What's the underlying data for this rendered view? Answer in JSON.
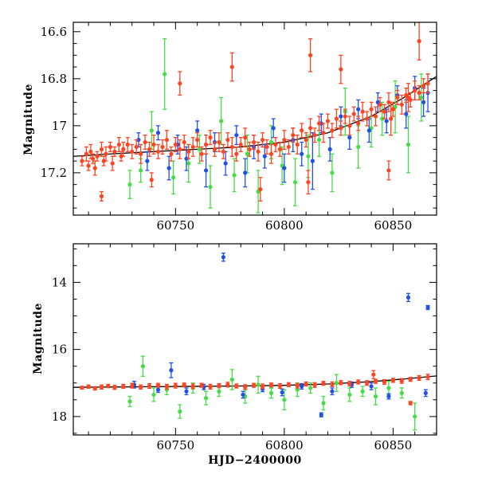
{
  "colors": {
    "series_a": "#2050e8",
    "series_b": "#44dd44",
    "series_c": "#ff4422",
    "fit": "#000000",
    "frame": "#000000"
  },
  "chart_data": [
    {
      "type": "scatter",
      "title": "",
      "xlabel": "",
      "ylabel": "Magnitude",
      "xlim": [
        60703,
        60870
      ],
      "ylim": [
        17.38,
        16.56
      ],
      "y_inverted": true,
      "x_ticks": [
        60750,
        60800,
        60850
      ],
      "x_tick_labels": [
        "60750",
        "60800",
        "60850"
      ],
      "y_ticks": [
        16.6,
        16.8,
        17,
        17.2
      ],
      "y_tick_labels": [
        "16.6",
        "16.8",
        "17",
        "17.2"
      ],
      "grid": false,
      "legend": "none",
      "fit_line": {
        "x": [
          60703,
          60720,
          60740,
          60760,
          60780,
          60800,
          60820,
          60840,
          60855,
          60870
        ],
        "y": [
          17.13,
          17.12,
          17.11,
          17.1,
          17.09,
          17.07,
          17.03,
          16.96,
          16.88,
          16.79
        ]
      },
      "series": [
        {
          "color_key": "series_c",
          "x": [
            60707,
            60709,
            60710,
            60711,
            60712,
            60713,
            60714,
            60716,
            60717,
            60718,
            60720,
            60721,
            60722,
            60724,
            60725,
            60726,
            60728,
            60730,
            60732,
            60734,
            60736,
            60738,
            60740,
            60742,
            60744,
            60746,
            60748,
            60750,
            60752,
            60754,
            60756,
            60758,
            60760,
            60762,
            60764,
            60766,
            60768,
            60770,
            60772,
            60774,
            60776,
            60778,
            60780,
            60782,
            60784,
            60786,
            60788,
            60790,
            60792,
            60794,
            60796,
            60798,
            60800,
            60802,
            60804,
            60806,
            60808,
            60810,
            60812,
            60814,
            60816,
            60818,
            60820,
            60822,
            60824,
            60826,
            60828,
            60830,
            60832,
            60834,
            60836,
            60838,
            60840,
            60842,
            60844,
            60846,
            60848,
            60850,
            60852,
            60854,
            60856,
            60858,
            60860,
            60862,
            60864,
            60866,
            60716,
            60739,
            60752,
            60776,
            60789,
            60812,
            60826,
            60849,
            60857,
            60862,
            60811,
            60848
          ],
          "y": [
            17.15,
            17.12,
            17.17,
            17.11,
            17.14,
            17.18,
            17.13,
            17.1,
            17.15,
            17.12,
            17.09,
            17.16,
            17.11,
            17.08,
            17.13,
            17.1,
            17.08,
            17.11,
            17.09,
            17.12,
            17.07,
            17.1,
            17.08,
            17.11,
            17.09,
            17.06,
            17.12,
            17.08,
            17.1,
            17.07,
            17.11,
            17.09,
            17.06,
            17.12,
            17.08,
            17.05,
            17.1,
            17.07,
            17.11,
            17.06,
            17.09,
            17.12,
            17.08,
            17.05,
            17.1,
            17.07,
            17.11,
            17.06,
            17.09,
            17.12,
            17.08,
            17.1,
            17.06,
            17.09,
            17.04,
            17.08,
            17.02,
            17.06,
            17.01,
            17.04,
            16.99,
            17.03,
            16.98,
            17.02,
            16.97,
            17.01,
            16.96,
            17.0,
            16.95,
            16.99,
            16.94,
            16.97,
            16.93,
            16.96,
            16.91,
            16.94,
            16.9,
            16.93,
            16.88,
            16.91,
            16.87,
            16.89,
            16.85,
            16.86,
            16.83,
            16.82,
            17.3,
            17.23,
            16.82,
            16.75,
            17.27,
            16.7,
            16.76,
            16.97,
            16.88,
            16.64,
            17.24,
            17.19
          ],
          "yerr": [
            0.02,
            0.03,
            0.02,
            0.03,
            0.02,
            0.03,
            0.02,
            0.03,
            0.02,
            0.03,
            0.02,
            0.03,
            0.02,
            0.03,
            0.02,
            0.03,
            0.03,
            0.03,
            0.03,
            0.04,
            0.03,
            0.03,
            0.04,
            0.03,
            0.03,
            0.04,
            0.03,
            0.03,
            0.04,
            0.03,
            0.03,
            0.04,
            0.03,
            0.03,
            0.04,
            0.03,
            0.03,
            0.04,
            0.03,
            0.03,
            0.04,
            0.03,
            0.03,
            0.04,
            0.03,
            0.03,
            0.04,
            0.03,
            0.03,
            0.04,
            0.03,
            0.03,
            0.04,
            0.03,
            0.03,
            0.04,
            0.03,
            0.03,
            0.04,
            0.03,
            0.03,
            0.04,
            0.03,
            0.03,
            0.04,
            0.03,
            0.03,
            0.04,
            0.03,
            0.03,
            0.04,
            0.03,
            0.03,
            0.04,
            0.03,
            0.03,
            0.04,
            0.03,
            0.03,
            0.04,
            0.03,
            0.03,
            0.04,
            0.03,
            0.03,
            0.04,
            0.02,
            0.03,
            0.05,
            0.06,
            0.05,
            0.07,
            0.06,
            0.07,
            0.06,
            0.08,
            0.05,
            0.04
          ]
        },
        {
          "color_key": "series_a",
          "x": [
            60733,
            60737,
            60742,
            60747,
            60751,
            60755,
            60760,
            60764,
            60768,
            60773,
            60778,
            60782,
            60786,
            60791,
            60795,
            60800,
            60804,
            60808,
            60813,
            60817,
            60821,
            60826,
            60830,
            60834,
            60839,
            60843,
            60847,
            60852,
            60856,
            60860,
            60864,
            60866
          ],
          "y": [
            17.06,
            17.15,
            17.03,
            17.18,
            17.08,
            17.14,
            17.02,
            17.19,
            17.07,
            17.16,
            17.04,
            17.2,
            17.09,
            17.13,
            17.01,
            17.18,
            17.06,
            17.12,
            17.15,
            16.99,
            17.1,
            16.96,
            17.05,
            16.93,
            17.02,
            16.9,
            16.98,
            16.87,
            16.95,
            16.84,
            16.9,
            16.86
          ],
          "yerr": [
            0.03,
            0.04,
            0.03,
            0.05,
            0.04,
            0.05,
            0.04,
            0.07,
            0.04,
            0.05,
            0.04,
            0.06,
            0.05,
            0.05,
            0.04,
            0.06,
            0.05,
            0.05,
            0.12,
            0.04,
            0.05,
            0.04,
            0.05,
            0.04,
            0.05,
            0.04,
            0.05,
            0.04,
            0.06,
            0.05,
            0.06,
            0.08
          ]
        },
        {
          "color_key": "series_b",
          "x": [
            60729,
            60734,
            60739,
            60745,
            60749,
            60756,
            60761,
            60766,
            60771,
            60777,
            60783,
            60788,
            60794,
            60799,
            60805,
            60811,
            60816,
            60822,
            60828,
            60834,
            60840,
            60845,
            60851,
            60857,
            60863
          ],
          "y": [
            17.25,
            17.19,
            17.02,
            16.78,
            17.22,
            17.16,
            17.1,
            17.26,
            16.98,
            17.21,
            17.12,
            17.28,
            17.07,
            17.17,
            17.24,
            17.13,
            17.06,
            17.2,
            16.94,
            17.09,
            17.01,
            16.97,
            16.92,
            17.08,
            16.88
          ],
          "yerr": [
            0.06,
            0.05,
            0.08,
            0.15,
            0.07,
            0.08,
            0.06,
            0.09,
            0.1,
            0.07,
            0.08,
            0.09,
            0.07,
            0.08,
            0.1,
            0.09,
            0.07,
            0.08,
            0.1,
            0.09,
            0.08,
            0.07,
            0.11,
            0.12,
            0.1
          ]
        }
      ]
    },
    {
      "type": "scatter",
      "title": "",
      "xlabel": "HJD−2400000",
      "ylabel": "Magnitude",
      "xlim": [
        60703,
        60870
      ],
      "ylim": [
        18.55,
        12.85
      ],
      "y_inverted": true,
      "x_ticks": [
        60750,
        60800,
        60850
      ],
      "x_tick_labels": [
        "60750",
        "60800",
        "60850"
      ],
      "y_ticks": [
        14,
        16,
        18
      ],
      "y_tick_labels": [
        "14",
        "16",
        "18"
      ],
      "grid": false,
      "legend": "none",
      "fit_line": {
        "x": [
          60703,
          60720,
          60740,
          60760,
          60780,
          60800,
          60820,
          60840,
          60855,
          60870
        ],
        "y": [
          17.13,
          17.12,
          17.11,
          17.1,
          17.09,
          17.07,
          17.03,
          16.96,
          16.88,
          16.79
        ]
      },
      "series": [
        {
          "color_key": "series_c",
          "x": [
            60707,
            60710,
            60713,
            60716,
            60719,
            60722,
            60726,
            60730,
            60734,
            60738,
            60742,
            60746,
            60750,
            60754,
            60758,
            60762,
            60766,
            60770,
            60774,
            60778,
            60782,
            60786,
            60790,
            60794,
            60798,
            60802,
            60806,
            60810,
            60814,
            60818,
            60822,
            60826,
            60830,
            60834,
            60838,
            60842,
            60846,
            60850,
            60854,
            60858,
            60862,
            60866,
            60841,
            60858
          ],
          "y": [
            17.14,
            17.11,
            17.16,
            17.12,
            17.09,
            17.13,
            17.1,
            17.08,
            17.12,
            17.09,
            17.07,
            17.11,
            17.08,
            17.06,
            17.1,
            17.07,
            17.11,
            17.08,
            17.05,
            17.09,
            17.12,
            17.07,
            17.1,
            17.06,
            17.09,
            17.05,
            17.08,
            17.03,
            17.06,
            17.01,
            17.04,
            16.99,
            17.02,
            16.97,
            17.0,
            16.95,
            16.97,
            16.92,
            16.94,
            16.89,
            16.85,
            16.82,
            16.75,
            17.6
          ],
          "yerr": [
            0.04,
            0.05,
            0.05,
            0.06,
            0.05,
            0.06,
            0.06,
            0.07,
            0.06,
            0.07,
            0.06,
            0.07,
            0.07,
            0.06,
            0.07,
            0.06,
            0.07,
            0.06,
            0.07,
            0.06,
            0.07,
            0.06,
            0.07,
            0.06,
            0.07,
            0.06,
            0.07,
            0.06,
            0.07,
            0.06,
            0.07,
            0.06,
            0.07,
            0.06,
            0.07,
            0.06,
            0.07,
            0.06,
            0.07,
            0.06,
            0.07,
            0.08,
            0.12,
            0.05
          ]
        },
        {
          "color_key": "series_a",
          "x": [
            60731,
            60742,
            60748,
            60755,
            60763,
            60772,
            60781,
            60790,
            60799,
            60808,
            60817,
            60822,
            60831,
            60840,
            60848,
            60857,
            60865,
            60866
          ],
          "y": [
            17.05,
            17.2,
            16.62,
            17.25,
            17.12,
            13.25,
            17.35,
            17.18,
            17.28,
            17.1,
            17.95,
            17.25,
            17.05,
            17.1,
            17.4,
            14.45,
            17.3,
            14.75
          ],
          "yerr": [
            0.1,
            0.08,
            0.22,
            0.1,
            0.08,
            0.12,
            0.1,
            0.08,
            0.1,
            0.08,
            0.06,
            0.1,
            0.08,
            0.1,
            0.08,
            0.12,
            0.1,
            0.06
          ]
        },
        {
          "color_key": "series_b",
          "x": [
            60729,
            60735,
            60740,
            60746,
            60752,
            60758,
            60764,
            60770,
            60776,
            60782,
            60788,
            60794,
            60800,
            60806,
            60812,
            60818,
            60824,
            60830,
            60836,
            60842,
            60848,
            60854,
            60860
          ],
          "y": [
            17.55,
            16.5,
            17.35,
            17.2,
            17.85,
            17.15,
            17.45,
            17.25,
            16.9,
            17.4,
            17.05,
            17.3,
            17.5,
            17.2,
            17.15,
            17.6,
            17.0,
            17.35,
            17.25,
            17.4,
            17.15,
            17.3,
            18.0
          ],
          "yerr": [
            0.15,
            0.3,
            0.2,
            0.15,
            0.2,
            0.15,
            0.2,
            0.15,
            0.3,
            0.2,
            0.25,
            0.15,
            0.3,
            0.2,
            0.15,
            0.2,
            0.25,
            0.2,
            0.15,
            0.25,
            0.2,
            0.15,
            0.4
          ]
        }
      ]
    }
  ]
}
